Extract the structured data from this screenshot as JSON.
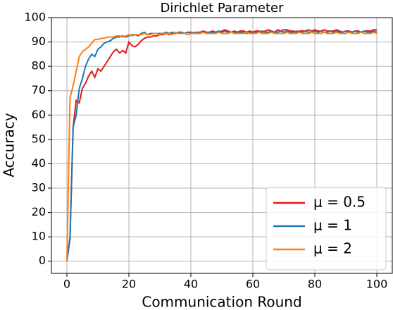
{
  "chart_data": {
    "type": "line",
    "title": "Dirichlet Parameter",
    "x_label": "Communication Round",
    "y_label": "Accuracy",
    "x": [
      0,
      1,
      2,
      3,
      4,
      5,
      6,
      7,
      8,
      9,
      10,
      11,
      12,
      13,
      14,
      15,
      16,
      17,
      18,
      19,
      20,
      21,
      22,
      23,
      24,
      25,
      26,
      27,
      28,
      29,
      30,
      31,
      32,
      33,
      34,
      35,
      36,
      37,
      38,
      39,
      40,
      41,
      42,
      43,
      44,
      45,
      46,
      47,
      48,
      49,
      50,
      51,
      52,
      53,
      54,
      55,
      56,
      57,
      58,
      59,
      60,
      61,
      62,
      63,
      64,
      65,
      66,
      67,
      68,
      69,
      70,
      71,
      72,
      73,
      74,
      75,
      76,
      77,
      78,
      79,
      80,
      81,
      82,
      83,
      84,
      85,
      86,
      87,
      88,
      89,
      90,
      91,
      92,
      93,
      94,
      95,
      96,
      97,
      98,
      99,
      100
    ],
    "series": [
      {
        "name": "μ = 0.5",
        "color": "#e31a1c",
        "values": [
          0,
          10,
          55,
          66,
          65,
          71,
          73,
          76,
          78,
          75.5,
          79,
          78,
          80,
          82,
          84,
          86,
          87,
          85.5,
          86.5,
          85.5,
          90,
          88.5,
          88,
          89,
          90.5,
          91.5,
          92,
          92,
          92.5,
          92.5,
          93,
          93,
          93.5,
          93,
          93.5,
          93.5,
          94,
          93.5,
          93.5,
          94,
          94,
          93.5,
          94,
          94,
          94.5,
          94,
          94,
          94.5,
          94,
          94,
          94.5,
          95,
          94.5,
          94,
          94.5,
          94,
          94.5,
          94.5,
          94,
          94.5,
          94,
          94.5,
          94.5,
          94,
          94.5,
          95,
          94.5,
          94,
          95,
          94.5,
          95,
          95,
          94.5,
          94.5,
          94,
          94.5,
          94.5,
          94.5,
          95,
          94.5,
          95,
          94.5,
          94.5,
          95,
          94.5,
          94.5,
          94.5,
          95,
          94.5,
          94,
          94.5,
          94.5,
          94,
          94.5,
          94.5,
          94,
          94.5,
          94.5,
          94.5,
          95,
          95
        ]
      },
      {
        "name": "μ = 1",
        "color": "#1f77b4",
        "values": [
          0,
          9,
          55,
          60,
          71,
          75,
          80,
          83,
          85,
          84,
          87,
          88,
          89.5,
          90,
          90.5,
          91.5,
          92,
          92,
          92.5,
          92,
          92.5,
          93,
          93,
          92.5,
          93.5,
          94,
          93,
          93.5,
          93.5,
          93.5,
          93.5,
          93.5,
          94,
          93.5,
          94,
          93.5,
          94,
          94,
          93.5,
          94,
          93.5,
          94,
          93.5,
          94,
          94,
          93.5,
          94,
          94,
          94,
          94.5,
          94,
          94.5,
          94,
          94,
          94,
          93.5,
          94,
          94,
          93.5,
          94,
          93.5,
          94,
          94,
          94.5,
          94,
          94,
          94.5,
          94,
          94,
          94.5,
          94,
          94.5,
          94,
          94,
          94.5,
          94,
          94,
          94.5,
          94,
          94,
          94.5,
          94,
          94.5,
          94,
          94,
          94.5,
          94,
          94.5,
          94,
          94,
          94.5,
          94,
          94,
          94.5,
          94,
          94,
          94.5,
          94,
          94,
          94.5,
          94
        ]
      },
      {
        "name": "μ = 2",
        "color": "#ff7f0e",
        "values": [
          0,
          67,
          72,
          78,
          84,
          86,
          87,
          88,
          89.5,
          91,
          91,
          91.5,
          91.5,
          92,
          92,
          92,
          92.5,
          92.5,
          92,
          92.5,
          93,
          92.5,
          93,
          93,
          93,
          93.5,
          93,
          93,
          93.5,
          93.5,
          93,
          93.5,
          93.5,
          93.5,
          93,
          94,
          93.5,
          93.5,
          93.5,
          93,
          93.5,
          93.5,
          93.5,
          93.5,
          94,
          93.5,
          93.5,
          93.5,
          93.5,
          94,
          93.5,
          93.5,
          93.5,
          94,
          93.5,
          93.5,
          93.5,
          93.5,
          94,
          93.5,
          93.5,
          93.5,
          94,
          93.5,
          93.5,
          93.5,
          94,
          93.5,
          93.5,
          93.5,
          93.5,
          94,
          93.5,
          93.5,
          93.5,
          94,
          93.5,
          93.5,
          93.5,
          94,
          93.5,
          93.5,
          93.5,
          94,
          93.5,
          93.5,
          93.5,
          94,
          93.5,
          93.5,
          93.5,
          94,
          93.5,
          93.5,
          93.5,
          94,
          93.5,
          93.5,
          93.5,
          94,
          93.5
        ]
      }
    ],
    "xlim": [
      -5,
      105
    ],
    "ylim": [
      -5,
      100
    ],
    "xticks": [
      0,
      20,
      40,
      60,
      80,
      100
    ],
    "yticks": [
      0,
      10,
      20,
      30,
      40,
      50,
      60,
      70,
      80,
      90,
      100
    ],
    "grid": true,
    "legend": "lower right"
  }
}
